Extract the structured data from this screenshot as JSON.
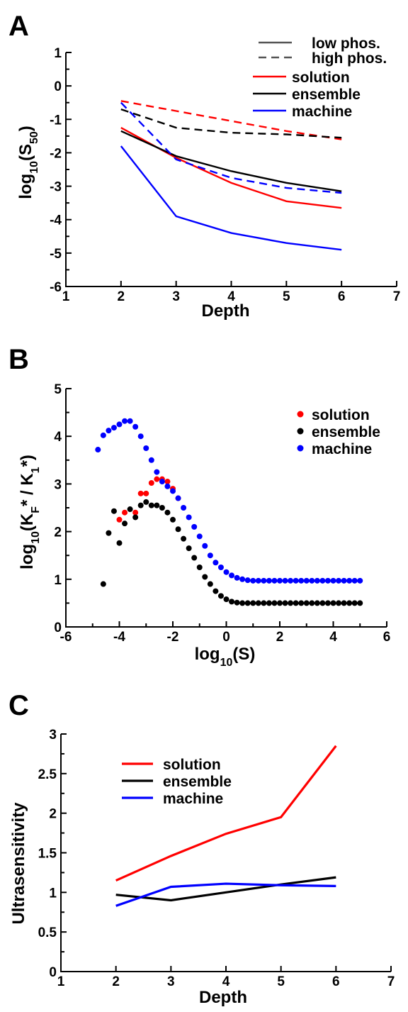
{
  "chart_data": [
    {
      "panel": "A",
      "type": "line",
      "xlabel": "Depth",
      "ylabel_main": "log",
      "ylabel_sub": "10",
      "ylabel_tail": "(S",
      "ylabel_sub2": "50",
      "ylabel_end": ")",
      "xlim": [
        1,
        7
      ],
      "ylim": [
        -6,
        1
      ],
      "xticks": [
        "1",
        "2",
        "3",
        "4",
        "5",
        "6",
        "7"
      ],
      "yticks": [
        "-6",
        "-5",
        "-4",
        "-3",
        "-2",
        "-1",
        "0",
        "1"
      ],
      "x": [
        2,
        3,
        4,
        5,
        6
      ],
      "style_legend": [
        {
          "name": "low phos.",
          "dash": "solid"
        },
        {
          "name": "high phos.",
          "dash": "dashed"
        }
      ],
      "color_legend": [
        {
          "name": "solution",
          "color": "#ff0000"
        },
        {
          "name": "ensemble",
          "color": "#000000"
        },
        {
          "name": "machine",
          "color": "#0000ff"
        }
      ],
      "series": [
        {
          "color": "#ff0000",
          "dash": "solid",
          "values": [
            -1.25,
            -2.15,
            -2.9,
            -3.45,
            -3.65
          ]
        },
        {
          "color": "#000000",
          "dash": "solid",
          "values": [
            -1.35,
            -2.1,
            -2.55,
            -2.9,
            -3.15
          ]
        },
        {
          "color": "#0000ff",
          "dash": "solid",
          "values": [
            -1.8,
            -3.9,
            -4.4,
            -4.7,
            -4.9
          ]
        },
        {
          "color": "#ff0000",
          "dash": "dashed",
          "values": [
            -0.45,
            -0.75,
            -1.05,
            -1.35,
            -1.6
          ]
        },
        {
          "color": "#000000",
          "dash": "dashed",
          "values": [
            -0.7,
            -1.25,
            -1.4,
            -1.45,
            -1.55
          ]
        },
        {
          "color": "#0000ff",
          "dash": "dashed",
          "values": [
            -0.5,
            -2.2,
            -2.75,
            -3.05,
            -3.2
          ]
        }
      ]
    },
    {
      "panel": "B",
      "type": "scatter",
      "xlabel_main": "log",
      "xlabel_sub": "10",
      "xlabel_tail": "(S)",
      "ylabel_parts": [
        "log",
        "10",
        "(K",
        "F",
        "* / K",
        "1",
        "*)"
      ],
      "xlim": [
        -6,
        6
      ],
      "ylim": [
        0,
        5
      ],
      "xticks": [
        "-6",
        "-4",
        "-2",
        "0",
        "2",
        "4",
        "6"
      ],
      "yticks": [
        "0",
        "1",
        "2",
        "3",
        "4",
        "5"
      ],
      "color_legend": [
        {
          "name": "solution",
          "color": "#ff0000"
        },
        {
          "name": "ensemble",
          "color": "#000000"
        },
        {
          "name": "machine",
          "color": "#0000ff"
        }
      ],
      "series": [
        {
          "color": "#ff0000",
          "points": [
            [
              -4.0,
              2.25
            ],
            [
              -3.8,
              2.4
            ],
            [
              -3.4,
              2.4
            ],
            [
              -3.2,
              2.8
            ],
            [
              -3.0,
              2.8
            ],
            [
              -2.8,
              3.02
            ],
            [
              -2.6,
              3.1
            ],
            [
              -2.4,
              3.1
            ],
            [
              -2.2,
              3.05
            ],
            [
              -2.0,
              2.9
            ],
            [
              -1.8,
              2.7
            ]
          ]
        },
        {
          "color": "#000000",
          "points": [
            [
              -4.6,
              0.9
            ],
            [
              -4.4,
              1.97
            ],
            [
              -4.2,
              2.43
            ],
            [
              -4.0,
              1.76
            ],
            [
              -3.8,
              2.17
            ],
            [
              -3.6,
              2.47
            ],
            [
              -3.4,
              2.3
            ],
            [
              -3.2,
              2.55
            ],
            [
              -3.0,
              2.62
            ],
            [
              -2.8,
              2.55
            ],
            [
              -2.6,
              2.55
            ],
            [
              -2.4,
              2.5
            ],
            [
              -2.2,
              2.4
            ],
            [
              -2.0,
              2.25
            ],
            [
              -1.8,
              2.05
            ],
            [
              -1.6,
              1.85
            ],
            [
              -1.4,
              1.65
            ],
            [
              -1.2,
              1.45
            ],
            [
              -1.0,
              1.25
            ],
            [
              -0.8,
              1.05
            ],
            [
              -0.6,
              0.9
            ],
            [
              -0.4,
              0.75
            ],
            [
              -0.2,
              0.65
            ],
            [
              0.0,
              0.58
            ],
            [
              0.2,
              0.53
            ],
            [
              0.4,
              0.51
            ],
            [
              0.6,
              0.5
            ],
            [
              0.8,
              0.5
            ],
            [
              1.0,
              0.5
            ],
            [
              1.2,
              0.5
            ],
            [
              1.4,
              0.5
            ],
            [
              1.6,
              0.5
            ],
            [
              1.8,
              0.5
            ],
            [
              2.0,
              0.5
            ],
            [
              2.2,
              0.5
            ],
            [
              2.4,
              0.5
            ],
            [
              2.6,
              0.5
            ],
            [
              2.8,
              0.5
            ],
            [
              3.0,
              0.5
            ],
            [
              3.2,
              0.5
            ],
            [
              3.4,
              0.5
            ],
            [
              3.6,
              0.5
            ],
            [
              3.8,
              0.5
            ],
            [
              4.0,
              0.5
            ],
            [
              4.2,
              0.5
            ],
            [
              4.4,
              0.5
            ],
            [
              4.6,
              0.5
            ],
            [
              4.8,
              0.5
            ],
            [
              5.0,
              0.5
            ]
          ]
        },
        {
          "color": "#0000ff",
          "points": [
            [
              -4.8,
              3.72
            ],
            [
              -4.6,
              4.02
            ],
            [
              -4.4,
              4.12
            ],
            [
              -4.2,
              4.18
            ],
            [
              -4.0,
              4.25
            ],
            [
              -3.8,
              4.32
            ],
            [
              -3.6,
              4.32
            ],
            [
              -3.4,
              4.2
            ],
            [
              -3.2,
              4.0
            ],
            [
              -3.0,
              3.75
            ],
            [
              -2.8,
              3.5
            ],
            [
              -2.6,
              3.25
            ],
            [
              -2.4,
              3.05
            ],
            [
              -2.2,
              2.95
            ],
            [
              -2.0,
              2.85
            ],
            [
              -1.8,
              2.7
            ],
            [
              -1.6,
              2.5
            ],
            [
              -1.4,
              2.3
            ],
            [
              -1.2,
              2.1
            ],
            [
              -1.0,
              1.9
            ],
            [
              -0.8,
              1.7
            ],
            [
              -0.6,
              1.5
            ],
            [
              -0.4,
              1.35
            ],
            [
              -0.2,
              1.25
            ],
            [
              0.0,
              1.15
            ],
            [
              0.2,
              1.08
            ],
            [
              0.4,
              1.03
            ],
            [
              0.6,
              1.0
            ],
            [
              0.8,
              0.98
            ],
            [
              1.0,
              0.97
            ],
            [
              1.2,
              0.97
            ],
            [
              1.4,
              0.97
            ],
            [
              1.6,
              0.97
            ],
            [
              1.8,
              0.97
            ],
            [
              2.0,
              0.97
            ],
            [
              2.2,
              0.97
            ],
            [
              2.4,
              0.97
            ],
            [
              2.6,
              0.97
            ],
            [
              2.8,
              0.97
            ],
            [
              3.0,
              0.97
            ],
            [
              3.2,
              0.97
            ],
            [
              3.4,
              0.97
            ],
            [
              3.6,
              0.97
            ],
            [
              3.8,
              0.97
            ],
            [
              4.0,
              0.97
            ],
            [
              4.2,
              0.97
            ],
            [
              4.4,
              0.97
            ],
            [
              4.6,
              0.97
            ],
            [
              4.8,
              0.97
            ],
            [
              5.0,
              0.97
            ]
          ]
        }
      ]
    },
    {
      "panel": "C",
      "type": "line",
      "xlabel": "Depth",
      "ylabel": "Ultrasensitivity",
      "xlim": [
        1,
        7
      ],
      "ylim": [
        0,
        3
      ],
      "xticks": [
        "1",
        "2",
        "3",
        "4",
        "5",
        "6",
        "7"
      ],
      "yticks": [
        "0",
        "0.5",
        "1",
        "1.5",
        "2",
        "2.5",
        "3"
      ],
      "yticks_values": [
        0,
        0.5,
        1,
        1.5,
        2,
        2.5,
        3
      ],
      "x": [
        2,
        3,
        4,
        5,
        6
      ],
      "color_legend": [
        {
          "name": "solution",
          "color": "#ff0000"
        },
        {
          "name": "ensemble",
          "color": "#000000"
        },
        {
          "name": "machine",
          "color": "#0000ff"
        }
      ],
      "series": [
        {
          "name": "solution",
          "color": "#ff0000",
          "values": [
            1.15,
            1.46,
            1.74,
            1.95,
            2.85
          ]
        },
        {
          "name": "ensemble",
          "color": "#000000",
          "values": [
            0.97,
            0.9,
            1.0,
            1.1,
            1.19
          ]
        },
        {
          "name": "machine",
          "color": "#0000ff",
          "values": [
            0.83,
            1.07,
            1.11,
            1.09,
            1.08
          ]
        }
      ]
    }
  ]
}
